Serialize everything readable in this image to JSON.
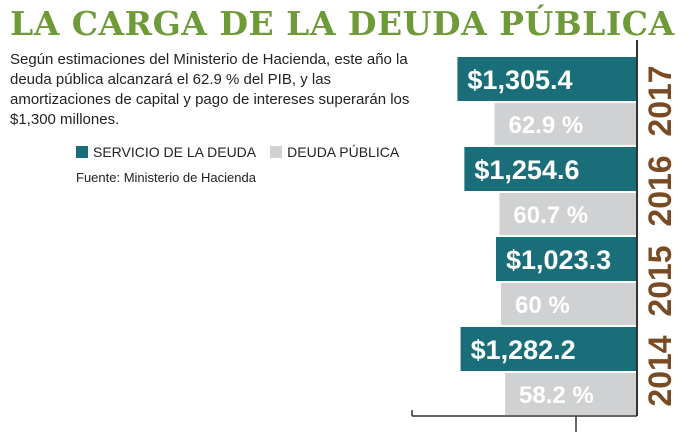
{
  "header": {
    "title": "LA CARGA DE LA DEUDA PÚBLICA",
    "intro": "Según estimaciones del Ministerio de Hacienda, este año la deuda pública alcanzará el 62.9 % del PIB, y las amortizaciones de capital y pago de intereses superarán los $1,300 millones."
  },
  "legend": {
    "service": "SERVICIO DE LA DEUDA",
    "debt": "DEUDA PÚBLICA"
  },
  "source": "Fuente: Ministerio de Hacienda",
  "colors": {
    "title": "#6e9a37",
    "service": "#1a6e7a",
    "debt": "#cfd1d3",
    "year": "#7a4a22",
    "axis": "#333333"
  },
  "chart_data": {
    "type": "bar",
    "orientation": "horizontal",
    "title": "LA CARGA DE LA DEUDA PÚBLICA",
    "categories": [
      "2017",
      "2016",
      "2015",
      "2014"
    ],
    "series": [
      {
        "name": "SERVICIO DE LA DEUDA",
        "values": [
          1305.4,
          1254.6,
          1023.3,
          1282.2
        ],
        "labels": [
          "$1,305.4",
          "$1,254.6",
          "$1,023.3",
          "$1,282.2"
        ]
      },
      {
        "name": "DEUDA PÚBLICA",
        "values": [
          62.9,
          60.7,
          60,
          58.2
        ],
        "labels": [
          "62.9 %",
          "60.7 %",
          "60 %",
          "58.2 %"
        ]
      }
    ],
    "grid": false,
    "legend_position": "top-left"
  }
}
